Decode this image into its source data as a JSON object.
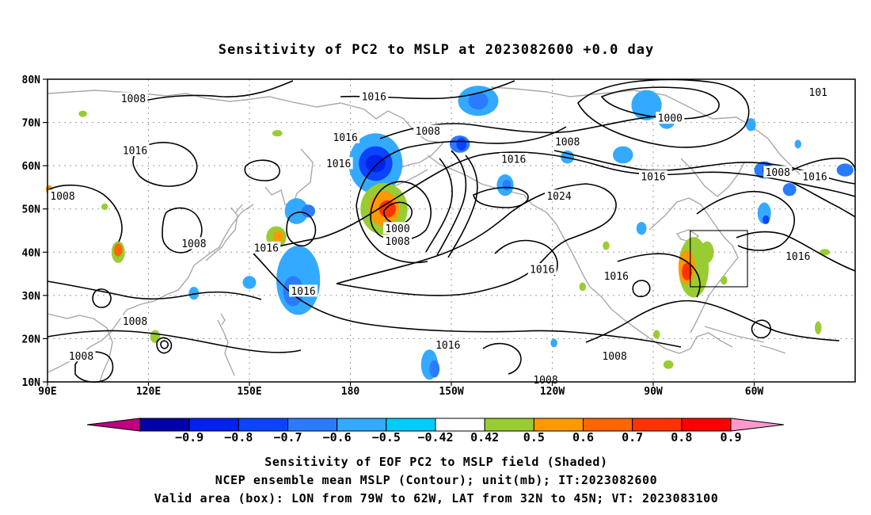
{
  "title": "Sensitivity of PC2 to MSLP at 2023082600 +0.0 day",
  "axes": {
    "lat_labels": [
      "10N",
      "20N",
      "30N",
      "40N",
      "50N",
      "60N",
      "70N",
      "80N"
    ],
    "lon_labels": [
      "90E",
      "120E",
      "150E",
      "180",
      "150W",
      "120W",
      "90W",
      "60W"
    ]
  },
  "contour_labels": [
    {
      "text": "1008",
      "lon": 115.5,
      "lat": 75.5
    },
    {
      "text": "1016",
      "lon": 187.0,
      "lat": 76.0
    },
    {
      "text": "1008",
      "lon": 203.0,
      "lat": 68.0
    },
    {
      "text": "1016",
      "lon": 178.5,
      "lat": 66.5
    },
    {
      "text": "1008",
      "lon": 244.5,
      "lat": 65.5
    },
    {
      "text": "1016",
      "lon": 116.0,
      "lat": 63.5
    },
    {
      "text": "1016",
      "lon": 176.5,
      "lat": 60.5
    },
    {
      "text": "1016",
      "lon": 228.5,
      "lat": 61.5
    },
    {
      "text": "1008",
      "lon": 93.5,
      "lat": 53.0
    },
    {
      "text": "1024",
      "lon": 242.0,
      "lat": 53.0
    },
    {
      "text": "1000",
      "lon": 275.0,
      "lat": 71.0
    },
    {
      "text": "1016",
      "lon": 270.0,
      "lat": 57.5
    },
    {
      "text": "1008",
      "lon": 307.0,
      "lat": 58.5
    },
    {
      "text": "1016",
      "lon": 318.0,
      "lat": 57.5
    },
    {
      "text": "101",
      "lon": 319.0,
      "lat": 77.0
    },
    {
      "text": "1000",
      "lon": 194.0,
      "lat": 45.5
    },
    {
      "text": "1008",
      "lon": 194.0,
      "lat": 42.5
    },
    {
      "text": "1008",
      "lon": 133.5,
      "lat": 42.0
    },
    {
      "text": "1016",
      "lon": 155.0,
      "lat": 41.0
    },
    {
      "text": "1016",
      "lon": 237.0,
      "lat": 36.0
    },
    {
      "text": "1016",
      "lon": 259.0,
      "lat": 34.5
    },
    {
      "text": "1016",
      "lon": 313.0,
      "lat": 39.0
    },
    {
      "text": "1016",
      "lon": 166.0,
      "lat": 31.0
    },
    {
      "text": "1008",
      "lon": 116.0,
      "lat": 24.0
    },
    {
      "text": "1016",
      "lon": 209.0,
      "lat": 18.5
    },
    {
      "text": "1008",
      "lon": 258.5,
      "lat": 16.0
    },
    {
      "text": "1008",
      "lon": 100.0,
      "lat": 16.0
    },
    {
      "text": "1008",
      "lon": 238.0,
      "lat": 10.5
    }
  ],
  "valid_area": {
    "lon_from": "79W",
    "lon_to": "62W",
    "lat_from": "32N",
    "lat_to": "45N"
  },
  "colorbar": {
    "labels": [
      "−0.9",
      "−0.8",
      "−0.7",
      "−0.6",
      "−0.5",
      "−0.42",
      "0.42",
      "0.5",
      "0.6",
      "0.7",
      "0.8",
      "0.9"
    ],
    "colors": [
      "#c0007f",
      "#0000aa",
      "#0022ee",
      "#0a44ff",
      "#2a7cff",
      "#33aaff",
      "#00ccff",
      "#ffffff",
      "#99cc33",
      "#ff9900",
      "#ff6600",
      "#ff3300",
      "#ff0000",
      "#ff99cc"
    ]
  },
  "footer": {
    "line1": "Sensitivity of EOF PC2 to MSLP field (Shaded)",
    "line2": "NCEP ensemble mean MSLP (Contour); unit(mb); IT:2023082600",
    "line3": "Valid area (box): LON from 79W to 62W, LAT from 32N to 45N; VT: 2023083100"
  }
}
